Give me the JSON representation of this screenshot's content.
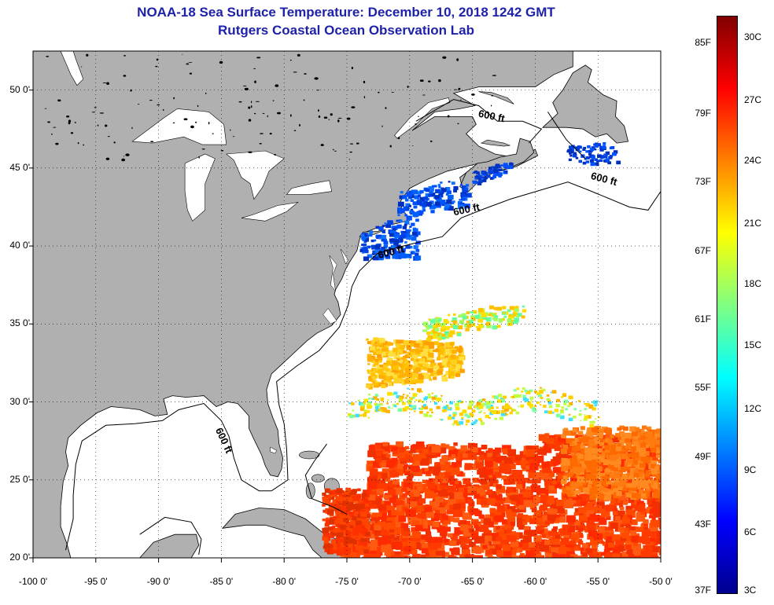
{
  "title": {
    "line1": "NOAA-18 Sea Surface Temperature:  December 10, 2018 1242 GMT",
    "line2": "Rutgers Coastal Ocean Observation Lab"
  },
  "map": {
    "lon_range": [
      -100,
      -50
    ],
    "lat_range": [
      20,
      52.5
    ],
    "grid": "dotted",
    "lat_ticks": [
      {
        "value": 20,
        "label": "20 0'"
      },
      {
        "value": 25,
        "label": "25 0'"
      },
      {
        "value": 30,
        "label": "30 0'"
      },
      {
        "value": 35,
        "label": "35 0'"
      },
      {
        "value": 40,
        "label": "40 0'"
      },
      {
        "value": 45,
        "label": "45 0'"
      },
      {
        "value": 50,
        "label": "50 0'"
      }
    ],
    "lon_ticks": [
      {
        "value": -100,
        "label": "-100 0'"
      },
      {
        "value": -95,
        "label": "-95 0'"
      },
      {
        "value": -90,
        "label": "-90 0'"
      },
      {
        "value": -85,
        "label": "-85 0'"
      },
      {
        "value": -80,
        "label": "-80 0'"
      },
      {
        "value": -75,
        "label": "-75 0'"
      },
      {
        "value": -70,
        "label": "-70 0'"
      },
      {
        "value": -65,
        "label": "-65 0'"
      },
      {
        "value": -60,
        "label": "-60 0'"
      },
      {
        "value": -55,
        "label": "-55 0'"
      },
      {
        "value": -50,
        "label": "-50 0'"
      }
    ],
    "land_color": "#b0b0b0",
    "contour_label": "600 ft",
    "contour_labels": [
      {
        "text": "600 ft",
        "lon": -63.5,
        "lat": 48.3
      },
      {
        "text": "600 ft",
        "lon": -54.5,
        "lat": 44.3
      },
      {
        "text": "600 ft",
        "lon": -65.5,
        "lat": 42.3
      },
      {
        "text": "600 ft",
        "lon": -71.5,
        "lat": 39.6
      },
      {
        "text": "600 ft",
        "lon": -84.8,
        "lat": 27.5
      }
    ]
  },
  "colorbar": {
    "colors": [
      "#00008f",
      "#0000ff",
      "#0080ff",
      "#00ffff",
      "#80ff80",
      "#ffff00",
      "#ff8000",
      "#ff0000",
      "#800000"
    ],
    "fahrenheit": [
      "85F",
      "79F",
      "73F",
      "67F",
      "61F",
      "55F",
      "49F",
      "43F",
      "37F"
    ],
    "celsius": [
      "30C",
      "27C",
      "24C",
      "21C",
      "18C",
      "15C",
      "12C",
      "9C",
      "6C",
      "3C"
    ]
  }
}
